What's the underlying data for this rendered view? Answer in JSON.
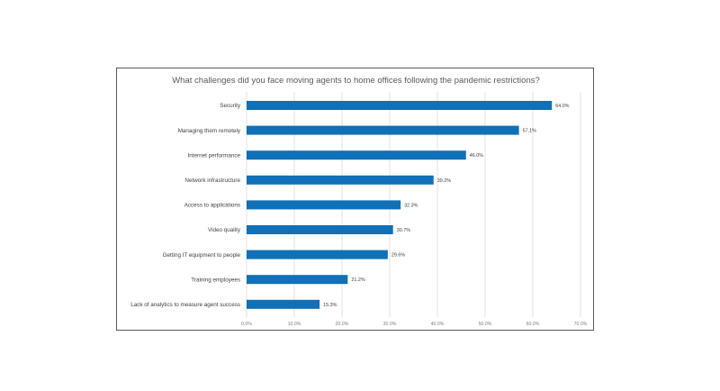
{
  "chart_data": {
    "type": "bar",
    "orientation": "horizontal",
    "title": "What challenges did you face moving agents to home offices following the pandemic restrictions?",
    "categories": [
      "Security",
      "Managing them remotely",
      "Internet performance",
      "Network infrastructure",
      "Access to applications",
      "Video quality",
      "Getting IT equipment to people",
      "Training employees",
      "Lack of analytics to measure agent success"
    ],
    "values": [
      64.0,
      57.1,
      46.0,
      39.2,
      32.3,
      30.7,
      29.6,
      21.2,
      15.3
    ],
    "value_labels": [
      "64.0%",
      "57.1%",
      "46.0%",
      "39.2%",
      "32.3%",
      "30.7%",
      "29.6%",
      "21.2%",
      "15.3%"
    ],
    "xlim": [
      0,
      70
    ],
    "x_ticks": [
      "0.0%",
      "10.0%",
      "20.0%",
      "30.0%",
      "40.0%",
      "50.0%",
      "60.0%",
      "70.0%"
    ],
    "xlabel": "",
    "ylabel": "",
    "grid": true,
    "bar_color": "#1070b8",
    "grid_color": "#d9d9d9"
  }
}
